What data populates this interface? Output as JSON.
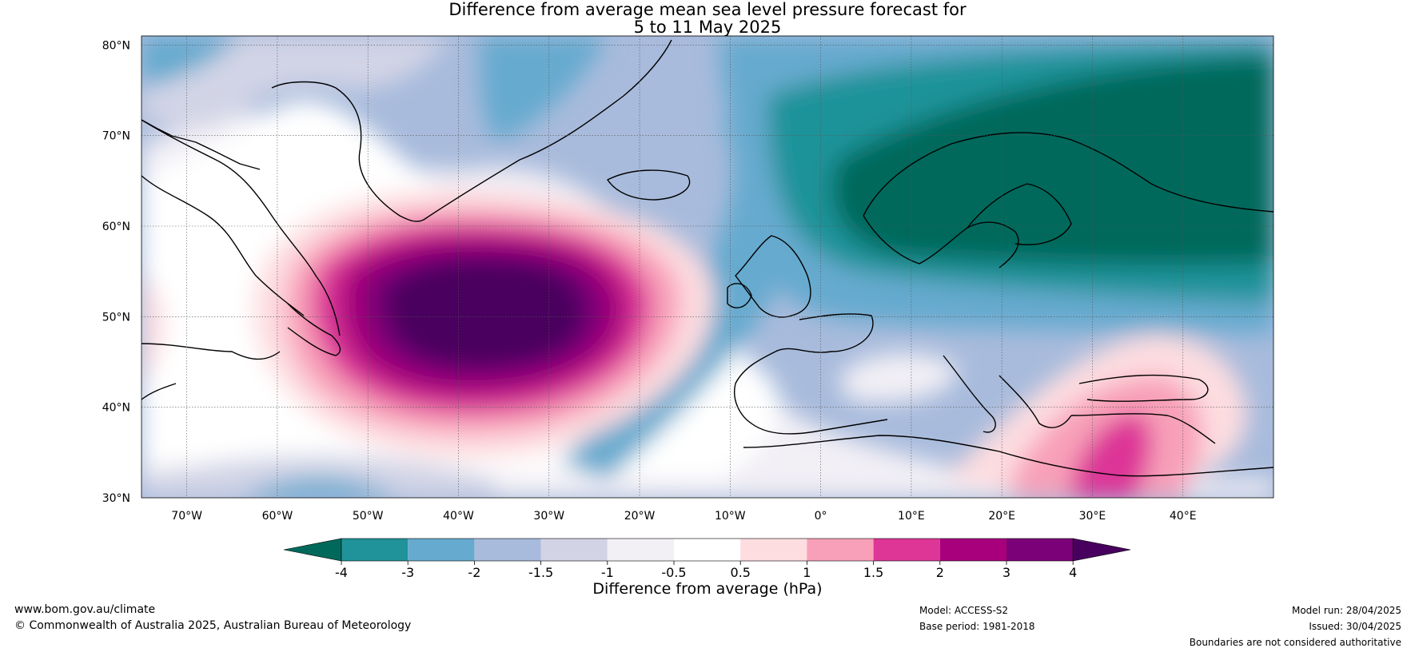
{
  "title": {
    "line1": "Difference from average mean sea level pressure forecast for",
    "line2": "5 to 11 May 2025"
  },
  "map": {
    "lat_labels": [
      "80°N",
      "70°N",
      "60°N",
      "50°N",
      "40°N",
      "30°N"
    ],
    "lon_labels": [
      "70°W",
      "60°W",
      "50°W",
      "40°W",
      "30°W",
      "20°W",
      "10°W",
      "0°",
      "10°E",
      "20°E",
      "30°E",
      "40°E"
    ],
    "lat_range": [
      30,
      81
    ],
    "lon_range": [
      -75,
      50
    ]
  },
  "colorbar": {
    "tick_labels": [
      "-4",
      "-3",
      "-2",
      "-1.5",
      "-1",
      "-0.5",
      "0.5",
      "1",
      "1.5",
      "2",
      "3",
      "4"
    ],
    "colors": [
      "#00695c",
      "#1f9399",
      "#66aacf",
      "#a8bbdc",
      "#d2d4e6",
      "#f2eff5",
      "#ffffff",
      "#fddde0",
      "#f8a0b9",
      "#dd3697",
      "#a8007d",
      "#7a0177",
      "#48005f"
    ],
    "label": "Difference from average (hPa)"
  },
  "footer": {
    "website": "www.bom.gov.au/climate",
    "copyright": "© Commonwealth of Australia 2025, Australian Bureau of Meteorology",
    "model": "Model: ACCESS-S2",
    "base_period": "Base period: 1981-2018",
    "model_run": "Model run: 28/04/2025",
    "issued": "Issued: 30/04/2025",
    "disclaimer": "Boundaries are not considered authoritative"
  }
}
